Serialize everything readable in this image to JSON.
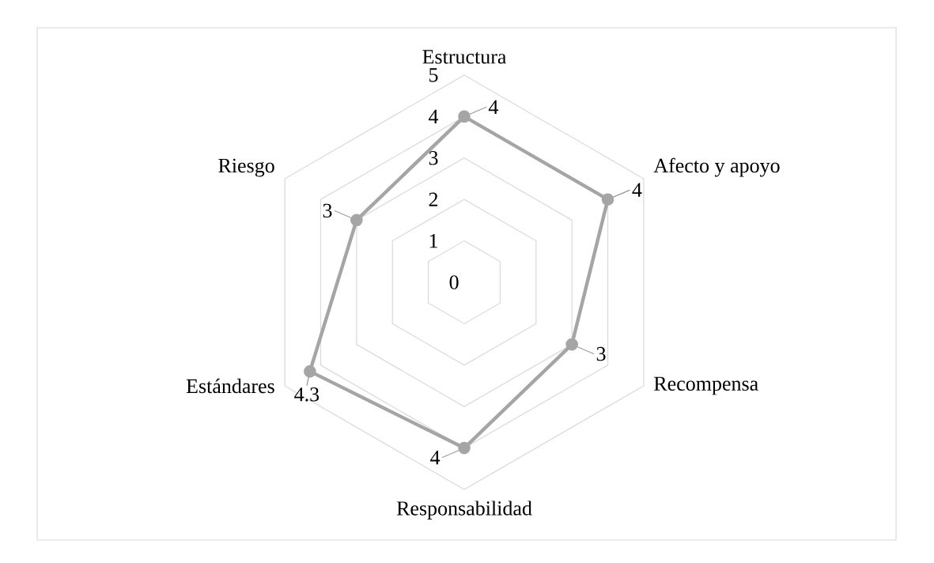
{
  "chart_data": {
    "type": "radar",
    "categories": [
      "Estructura",
      "Afecto y apoyo",
      "Recompensa",
      "Responsabilidad",
      "Estándares",
      "Riesgo"
    ],
    "series": [
      {
        "color": "#a5a5a5",
        "values": [
          4,
          4,
          3,
          4,
          4.3,
          3
        ]
      }
    ],
    "ylim": [
      0,
      5
    ],
    "yticks": [
      0,
      1,
      2,
      3,
      4,
      5
    ],
    "grid": true,
    "marker": "circle",
    "data_labels": true
  }
}
